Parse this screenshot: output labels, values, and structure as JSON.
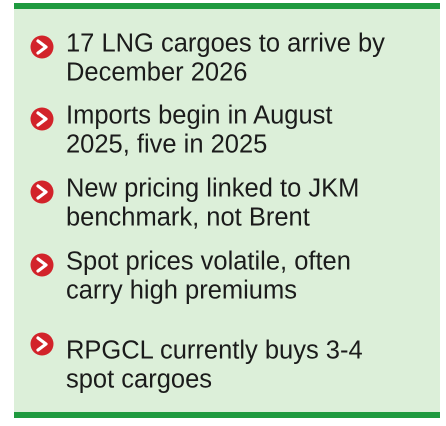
{
  "items": [
    {
      "lines": [
        "17 LNG cargoes to arrive by",
        "December 2026"
      ]
    },
    {
      "lines": [
        "Imports begin in August",
        "2025, five in 2025"
      ]
    },
    {
      "lines": [
        "New pricing linked to JKM",
        "benchmark, not Brent"
      ]
    },
    {
      "lines": [
        "Spot prices volatile, often",
        "carry high premiums"
      ]
    },
    {
      "lines": [
        "RPGCL currently buys 3-4",
        "spot cargoes"
      ]
    }
  ]
}
